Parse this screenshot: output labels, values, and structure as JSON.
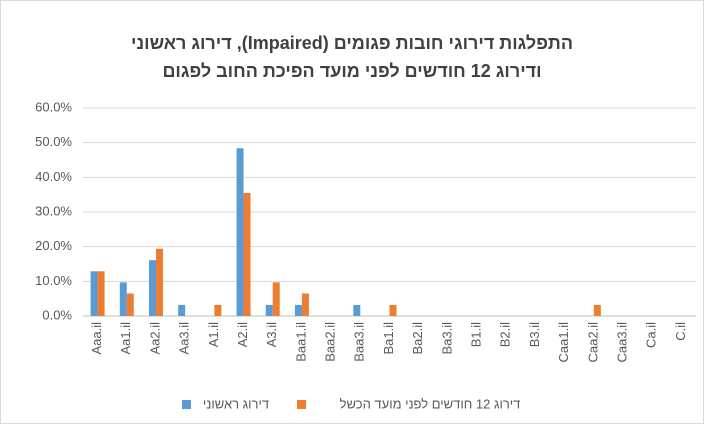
{
  "chart_data": {
    "type": "bar",
    "title": [
      "התפלגות דירוגי חובות פגומים (Impaired), דירוג ראשוני",
      "ודירוג 12 חודשים לפני מועד הפיכת החוב לפגום"
    ],
    "categories": [
      "Aaa.il",
      "Aa1.il",
      "Aa2.il",
      "Aa3.il",
      "A1.il",
      "A2.il",
      "A3.il",
      "Baa1.il",
      "Baa2.il",
      "Baa3.il",
      "Ba1.il",
      "Ba2.il",
      "Ba3.il",
      "B1.il",
      "B2.il",
      "B3.il",
      "Caa1.il",
      "Caa2.il",
      "Caa3.il",
      "Ca.il",
      "C.il"
    ],
    "series": [
      {
        "name": "דירוג ראשוני",
        "color": "#5b9bd5",
        "values": [
          12.9,
          9.7,
          16.1,
          3.2,
          0,
          48.4,
          3.2,
          3.2,
          0,
          3.2,
          0,
          0,
          0,
          0,
          0,
          0,
          0,
          0,
          0,
          0,
          0
        ]
      },
      {
        "name": "דירוג 12 חודשים לפני מועד הכשל",
        "color": "#ed7d31",
        "values": [
          12.9,
          6.5,
          19.4,
          0,
          3.2,
          35.5,
          9.7,
          6.5,
          0,
          0,
          3.2,
          0,
          0,
          0,
          0,
          0,
          0,
          3.2,
          0,
          0,
          0
        ]
      }
    ],
    "ylim": [
      0,
      60
    ],
    "yticks": [
      {
        "value": 0,
        "label": "0.0%"
      },
      {
        "value": 10,
        "label": "10.0%"
      },
      {
        "value": 20,
        "label": "20.0%"
      },
      {
        "value": 30,
        "label": "30.0%"
      },
      {
        "value": 40,
        "label": "40.0%"
      },
      {
        "value": 50,
        "label": "50.0%"
      },
      {
        "value": 60,
        "label": "60.0%"
      }
    ],
    "grid": true,
    "legend": "bottom"
  }
}
